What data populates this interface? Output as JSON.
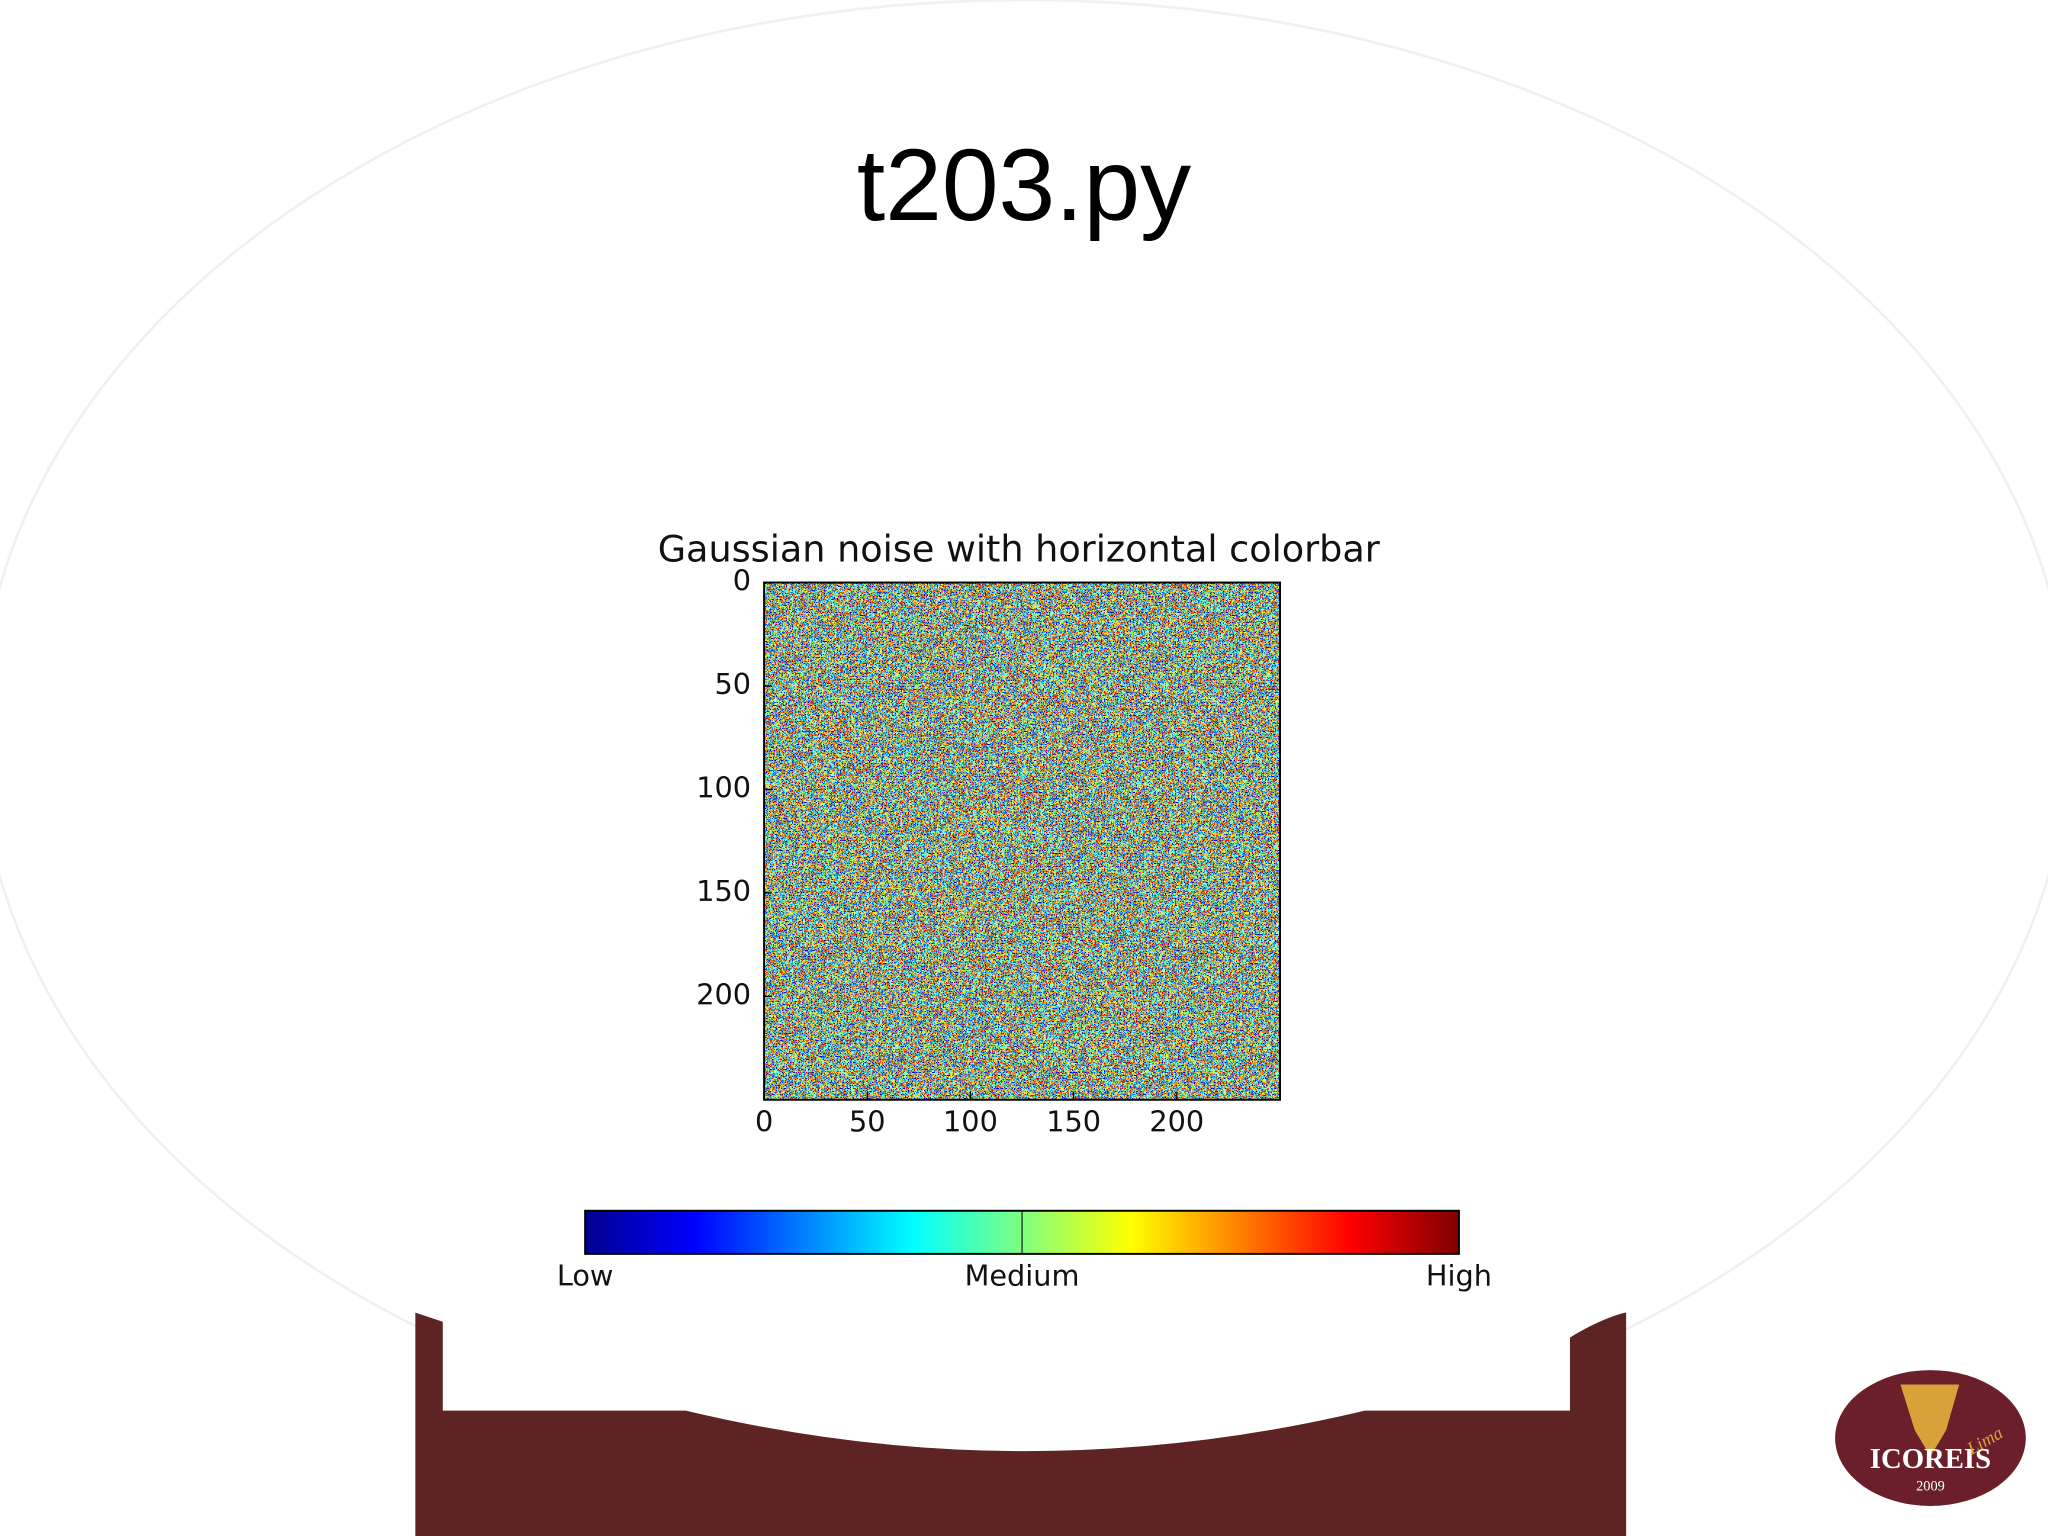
{
  "slide_title": "t203.py",
  "chart_data": {
    "type": "heatmap",
    "title": "Gaussian noise with horizontal colorbar",
    "colormap": "jet",
    "xlim": [
      0,
      250
    ],
    "ylim": [
      0,
      250
    ],
    "y_inverted": true,
    "xticks": [
      0,
      50,
      100,
      150,
      200
    ],
    "yticks": [
      0,
      50,
      100,
      150,
      200
    ],
    "colorbar": {
      "orientation": "horizontal",
      "labels": [
        "Low",
        "Medium",
        "High"
      ]
    }
  },
  "logo": {
    "name": "ICOREIS",
    "year": "2009",
    "place": "Lima"
  }
}
